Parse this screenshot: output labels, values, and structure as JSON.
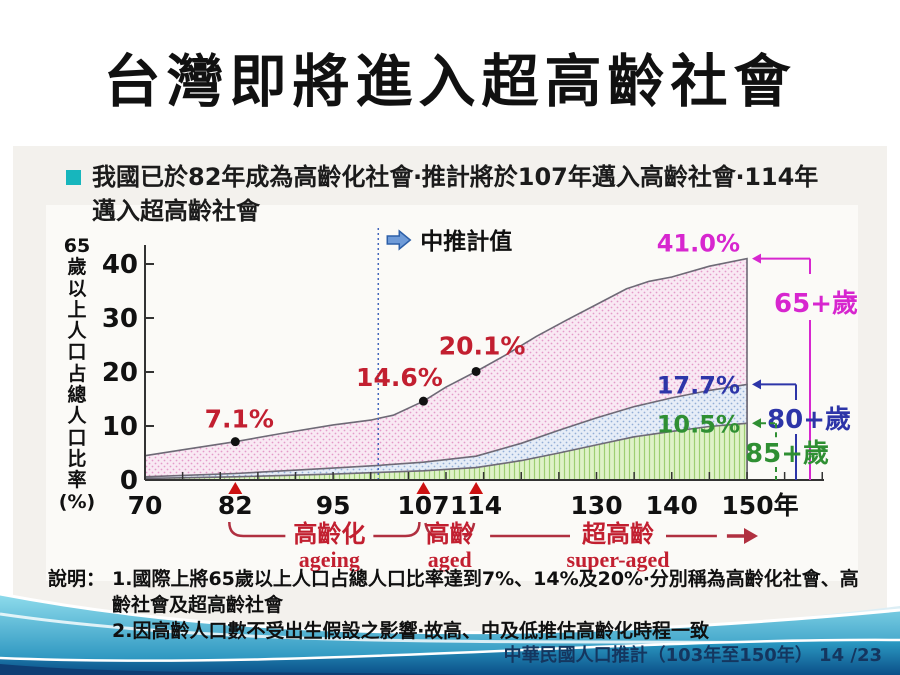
{
  "slide": {
    "title": "台灣即將進入超高齡社會",
    "bullet": {
      "line1": "我國已於82年成為高齡化社會‧推計將於107年邁入高齡社會‧114年",
      "line2": "邁入超高齡社會"
    },
    "notes": {
      "label": "說明：",
      "items": [
        "1.國際上將65歲以上人口占總人口比率達到7%、14%及20%‧分別稱為高齡化社會、高齡社會及超高齡社會",
        "2.因高齡人口數不受出生假設之影響‧故高、中及低推估高齡化時程一致"
      ]
    },
    "footer": "中華民國人口推計（103年至150年） 14 /23"
  },
  "colors": {
    "bullet_marker": "#17b6bd",
    "annotation_red": "#c21f30",
    "marker_triangle_red": "#cc1111",
    "median_line_blue": "#4466bb",
    "curve_stroke": "#6e6a76",
    "axis": "#333333",
    "wave_teal": "#1a9bc4",
    "wave_navy": "#0d4d86"
  },
  "chart_data": {
    "type": "area",
    "title": "",
    "xlabel": "",
    "ylabel": "65歲以上人口占總人口比率(%)",
    "xlim": [
      70,
      150
    ],
    "ylim": [
      0,
      43
    ],
    "yticks": [
      0,
      10,
      20,
      30,
      40
    ],
    "x_ticks_labeled": [
      {
        "year": 70,
        "label": "70"
      },
      {
        "year": 82,
        "label": "82"
      },
      {
        "year": 95,
        "label": "95"
      },
      {
        "year": 107,
        "label": "107"
      },
      {
        "year": 114,
        "label": "114"
      },
      {
        "year": 130,
        "label": "130"
      },
      {
        "year": 140,
        "label": "140"
      },
      {
        "year": 150,
        "label": "150年"
      }
    ],
    "grid": false,
    "legend_position": "right",
    "median_projection": {
      "label": "中推計值",
      "year": 101
    },
    "series": [
      {
        "name": "65+歲",
        "color": "#d726cf",
        "end_label": "41.0%",
        "points": [
          [
            70,
            4.5
          ],
          [
            75,
            5.6
          ],
          [
            82,
            7.1
          ],
          [
            88,
            8.6
          ],
          [
            95,
            10.2
          ],
          [
            100,
            11.1
          ],
          [
            101,
            11.4
          ],
          [
            103,
            12.0
          ],
          [
            107,
            14.6
          ],
          [
            110,
            17.2
          ],
          [
            114,
            20.1
          ],
          [
            118,
            23.2
          ],
          [
            122,
            26.6
          ],
          [
            126,
            29.6
          ],
          [
            130,
            32.5
          ],
          [
            134,
            35.4
          ],
          [
            137,
            36.8
          ],
          [
            140,
            37.6
          ],
          [
            145,
            39.6
          ],
          [
            150,
            41.0
          ]
        ]
      },
      {
        "name": "80+歲",
        "color": "#2d35a8",
        "end_label": "17.7%",
        "points": [
          [
            70,
            0.6
          ],
          [
            82,
            1.2
          ],
          [
            95,
            2.2
          ],
          [
            101,
            2.7
          ],
          [
            107,
            3.3
          ],
          [
            114,
            4.4
          ],
          [
            120,
            6.8
          ],
          [
            125,
            9.2
          ],
          [
            130,
            11.5
          ],
          [
            135,
            13.6
          ],
          [
            140,
            15.2
          ],
          [
            145,
            16.6
          ],
          [
            150,
            17.7
          ]
        ]
      },
      {
        "name": "85+歲",
        "color": "#2f8f33",
        "end_label": "10.5%",
        "points": [
          [
            70,
            0.3
          ],
          [
            82,
            0.6
          ],
          [
            95,
            1.1
          ],
          [
            101,
            1.4
          ],
          [
            107,
            1.7
          ],
          [
            114,
            2.3
          ],
          [
            120,
            3.6
          ],
          [
            125,
            5.0
          ],
          [
            130,
            6.5
          ],
          [
            135,
            8.0
          ],
          [
            140,
            9.0
          ],
          [
            145,
            9.9
          ],
          [
            150,
            10.5
          ]
        ]
      }
    ],
    "point_annotations": [
      {
        "year": 82,
        "value": 7.1,
        "label": "7.1%"
      },
      {
        "year": 107,
        "value": 14.6,
        "label": "14.6%"
      },
      {
        "year": 114,
        "value": 20.1,
        "label": "20.1%"
      }
    ],
    "marked_years": [
      82,
      107,
      114
    ],
    "stage_labels": [
      {
        "zh": "高齡化",
        "en": "ageing",
        "from": 82,
        "to": 107
      },
      {
        "zh": "高齡",
        "en": "aged",
        "from": 107,
        "to": 114
      },
      {
        "zh": "超高齡",
        "en": "super-aged",
        "from": 114,
        "to": 150
      }
    ]
  }
}
